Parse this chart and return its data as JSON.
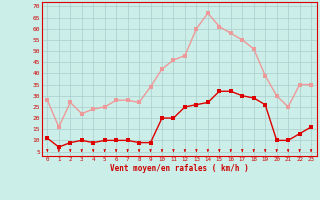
{
  "x": [
    0,
    1,
    2,
    3,
    4,
    5,
    6,
    7,
    8,
    9,
    10,
    11,
    12,
    13,
    14,
    15,
    16,
    17,
    18,
    19,
    20,
    21,
    22,
    23
  ],
  "wind_avg": [
    11,
    7,
    9,
    10,
    9,
    10,
    10,
    10,
    9,
    9,
    20,
    20,
    25,
    26,
    27,
    32,
    32,
    30,
    29,
    26,
    10,
    10,
    13,
    16
  ],
  "wind_gust": [
    28,
    16,
    27,
    22,
    24,
    25,
    28,
    28,
    27,
    34,
    42,
    46,
    48,
    60,
    67,
    61,
    58,
    55,
    51,
    39,
    30,
    25,
    35,
    35
  ],
  "bg_color": "#cceee8",
  "grid_color": "#aacccc",
  "avg_color": "#dd0000",
  "gust_color": "#ee9999",
  "xlabel": "Vent moyen/en rafales ( km/h )",
  "xlabel_color": "#cc0000",
  "ylabel_ticks": [
    5,
    10,
    15,
    20,
    25,
    30,
    35,
    40,
    45,
    50,
    55,
    60,
    65,
    70
  ],
  "ylim": [
    3,
    72
  ],
  "xlim": [
    -0.5,
    23.5
  ],
  "tick_color": "#cc0000",
  "markersize": 2.5,
  "linewidth": 1.0
}
